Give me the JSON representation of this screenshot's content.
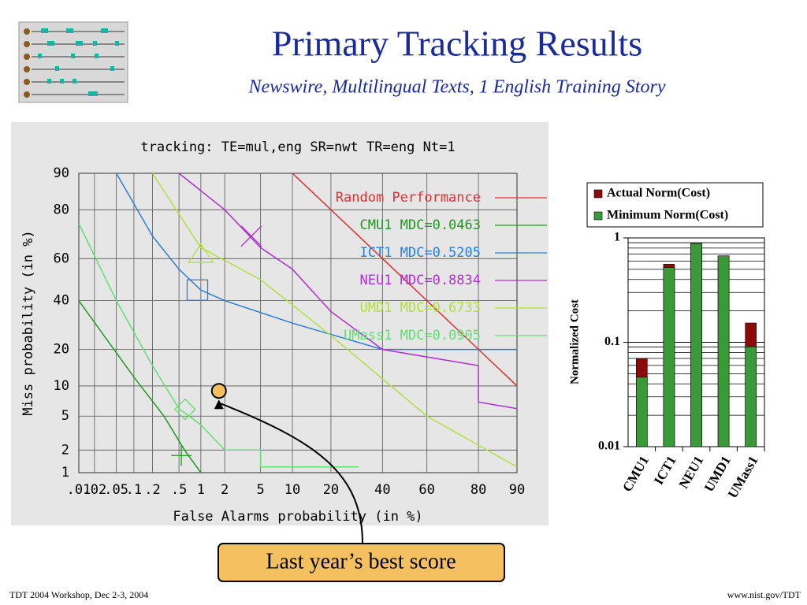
{
  "slide": {
    "title": "Primary Tracking Results",
    "subtitle": "Newswire, Multilingual Texts, 1 English Training Story",
    "footer_left": "TDT 2004 Workshop, Dec 2-3, 2004",
    "footer_right": "www.nist.gov/TDT"
  },
  "chart_data": [
    {
      "type": "line",
      "title": "tracking: TE=mul,eng SR=nwt TR=eng Nt=1",
      "xlabel": "False Alarms probability (in %)",
      "ylabel": "Miss probability (in %)",
      "xscale": "probit",
      "yscale": "probit",
      "grid": true,
      "xlim": [
        0.01,
        90
      ],
      "ylim": [
        1,
        90
      ],
      "xticks": [
        {
          "value": 0.01,
          "label": ".01"
        },
        {
          "value": 0.02,
          "label": ".02"
        },
        {
          "value": 0.05,
          "label": ".05"
        },
        {
          "value": 0.1,
          "label": ".1"
        },
        {
          "value": 0.2,
          "label": ".2"
        },
        {
          "value": 0.5,
          "label": ".5"
        },
        1,
        2,
        5,
        10,
        20,
        40,
        60,
        80,
        90
      ],
      "yticks": [
        1,
        2,
        5,
        10,
        20,
        40,
        60,
        80,
        90
      ],
      "series": [
        {
          "name": "Random Performance",
          "color": "#e03030",
          "x": [
            10,
            20,
            40,
            60,
            80,
            90
          ],
          "y": [
            90,
            80,
            60,
            40,
            20,
            10
          ]
        },
        {
          "name": "CMU1 MDC=0.0463",
          "color": "#1f9a1f",
          "x": [
            0.01,
            0.03,
            0.1,
            0.3,
            0.6,
            1
          ],
          "y": [
            40,
            25,
            12,
            5,
            2,
            1
          ],
          "marker": "plus",
          "mdc_point": [
            0.54,
            1.7
          ]
        },
        {
          "name": "ICT1 MDC=0.5205",
          "color": "#2a7fd8",
          "x": [
            0.05,
            0.2,
            0.5,
            1,
            2,
            10,
            40,
            90
          ],
          "y": [
            90,
            70,
            55,
            45,
            40,
            30,
            20,
            20
          ],
          "marker": "square",
          "mdc_point": [
            0.9,
            45
          ]
        },
        {
          "name": "NEU1 MDC=0.8834",
          "color": "#b030d0",
          "x": [
            0.5,
            2,
            5,
            10,
            20,
            40,
            80,
            80,
            90
          ],
          "y": [
            90,
            80,
            65,
            55,
            35,
            20,
            15,
            7,
            6
          ],
          "marker": "cross",
          "mdc_point": [
            4,
            70
          ]
        },
        {
          "name": "UMD1 MDC=0.6733",
          "color": "#b0e040",
          "x": [
            0.2,
            1,
            5,
            20,
            60,
            90
          ],
          "y": [
            90,
            65,
            50,
            25,
            5,
            1.2
          ],
          "marker": "triangle",
          "mdc_point": [
            1,
            62
          ]
        },
        {
          "name": "UMass1 MDC=0.0905",
          "color": "#60e070",
          "x": [
            0.01,
            0.05,
            0.2,
            0.5,
            1,
            2,
            5,
            5,
            30
          ],
          "y": [
            75,
            40,
            15,
            6,
            4,
            2,
            2,
            1.2,
            1.2
          ],
          "marker": "diamond",
          "mdc_point": [
            0.61,
            5.9
          ]
        }
      ],
      "annotation": {
        "text": "Last year’s best score",
        "x": 1.7,
        "y": 9,
        "color": "#f5c060"
      }
    },
    {
      "type": "bar",
      "ylabel": "Normalized Cost",
      "yscale": "log",
      "ylim": [
        0.01,
        1
      ],
      "yticks": [
        1,
        0.1,
        0.01
      ],
      "categories": [
        "CMU1",
        "ICT1",
        "NEU1",
        "UMD1",
        "UMass1"
      ],
      "series": [
        {
          "name": "Actual Norm(Cost)",
          "color": "#8b0a0a",
          "values": [
            0.07,
            0.56,
            0.8834,
            0.6733,
            0.153
          ]
        },
        {
          "name": "Minimum Norm(Cost)",
          "color": "#3a9a3a",
          "values": [
            0.0463,
            0.5205,
            0.8834,
            0.6733,
            0.0905
          ]
        }
      ]
    }
  ]
}
